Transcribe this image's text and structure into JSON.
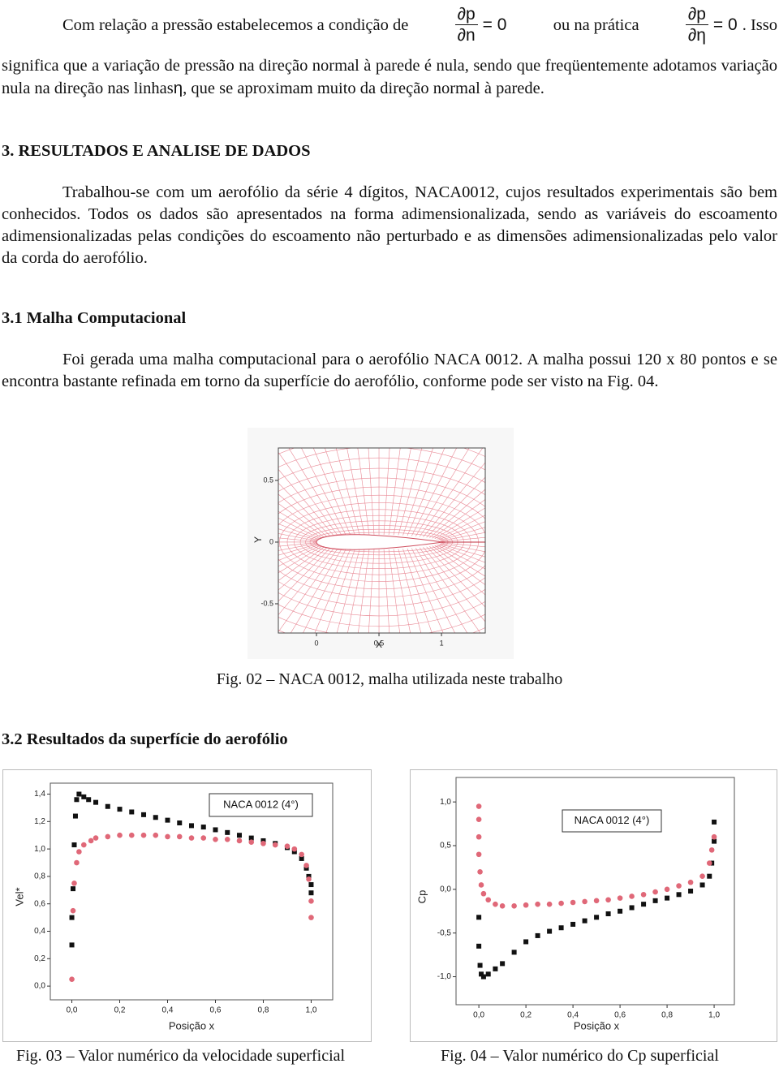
{
  "intro": {
    "lead": "Com relação a pressão estabelecemos a condição de",
    "eq1": {
      "num": "∂p",
      "den": "∂n",
      "rhs": "= 0"
    },
    "middle": "ou na prática",
    "eq2": {
      "num": "∂p",
      "den": "∂η",
      "rhs": "= 0"
    },
    "tail": ". Isso",
    "body": "significa que a variação de pressão na direção normal à parede é nula, sendo que freqüentemente adotamos variação nula na direção nas linhas",
    "eta": "η",
    "end": ", que se aproximam muito da direção normal à parede."
  },
  "section_3": {
    "heading": "3. RESULTADOS E ANALISE DE DADOS",
    "paragraph": "Trabalhou-se com um aerofólio da série 4 dígitos, NACA0012, cujos resultados experimentais são bem conhecidos. Todos os dados são apresentados na forma adimensionalizada, sendo as variáveis do escoamento adimensionalizadas pelas condições do escoamento não perturbado e as dimensões adimensionalizadas pelo valor da corda do aerofólio."
  },
  "section_3_1": {
    "heading": "3.1 Malha Computacional",
    "paragraph": "Foi gerada uma malha computacional para o aerofólio NACA 0012. A malha possui 120 x 80 pontos e se encontra bastante refinada em torno da superfície do aerofólio, conforme pode ser visto na Fig. 04."
  },
  "section_3_2": {
    "heading": "3.2 Resultados da superfície do aerofólio"
  },
  "chart_data": [
    {
      "type": "mesh",
      "xlabel": "X",
      "ylabel": "Y",
      "xlim": [
        -0.305,
        1.35
      ],
      "ylim": [
        -0.737,
        0.763
      ],
      "xticks": [
        0,
        0.5,
        1
      ],
      "yticks": [
        -0.5,
        0,
        0.5
      ],
      "color": "#e98a96",
      "caption": "Fig. 02 – NACA 0012, malha utilizada neste trabalho"
    },
    {
      "type": "scatter",
      "xlabel": "Posição x",
      "ylabel": "Vel*",
      "annotation": "NACA 0012 (4°)",
      "xlim": [
        -0.09,
        1.09
      ],
      "ylim": [
        -0.1,
        1.48
      ],
      "xticks": [
        {
          "value": 0,
          "label": "0,0"
        },
        {
          "value": 0.2,
          "label": "0,2"
        },
        {
          "value": 0.4,
          "label": "0,4"
        },
        {
          "value": 0.6,
          "label": "0,6"
        },
        {
          "value": 0.8,
          "label": "0,8"
        },
        {
          "value": 1,
          "label": "1,0"
        }
      ],
      "yticks": [
        {
          "value": 0,
          "label": "0,0"
        },
        {
          "value": 0.2,
          "label": "0,2"
        },
        {
          "value": 0.4,
          "label": "0,4"
        },
        {
          "value": 0.6,
          "label": "0,6"
        },
        {
          "value": 0.8,
          "label": "0,8"
        },
        {
          "value": 1,
          "label": "1,0"
        },
        {
          "value": 1.2,
          "label": "1,2"
        },
        {
          "value": 1.4,
          "label": "1,4"
        }
      ],
      "series": [
        {
          "color": "#111111",
          "marker": "square",
          "x": [
            0,
            0,
            0.005,
            0.01,
            0.015,
            0.02,
            0.03,
            0.05,
            0.07,
            0.1,
            0.15,
            0.2,
            0.25,
            0.3,
            0.35,
            0.4,
            0.45,
            0.5,
            0.55,
            0.6,
            0.65,
            0.7,
            0.75,
            0.8,
            0.85,
            0.9,
            0.93,
            0.96,
            0.98,
            0.99,
            1,
            1
          ],
          "values": [
            0.3,
            0.5,
            0.71,
            1.03,
            1.24,
            1.36,
            1.4,
            1.38,
            1.36,
            1.34,
            1.31,
            1.29,
            1.27,
            1.25,
            1.23,
            1.21,
            1.19,
            1.17,
            1.16,
            1.14,
            1.12,
            1.1,
            1.08,
            1.06,
            1.04,
            1.01,
            0.98,
            0.93,
            0.86,
            0.8,
            0.74,
            0.68
          ]
        },
        {
          "color": "#e06878",
          "marker": "circle",
          "x": [
            0,
            0.005,
            0.01,
            0.02,
            0.03,
            0.05,
            0.08,
            0.1,
            0.15,
            0.2,
            0.25,
            0.3,
            0.35,
            0.4,
            0.45,
            0.5,
            0.55,
            0.6,
            0.65,
            0.7,
            0.75,
            0.8,
            0.85,
            0.9,
            0.93,
            0.96,
            0.98,
            0.99,
            1,
            1
          ],
          "values": [
            0.05,
            0.55,
            0.75,
            0.9,
            0.98,
            1.03,
            1.06,
            1.08,
            1.09,
            1.1,
            1.1,
            1.1,
            1.1,
            1.09,
            1.09,
            1.08,
            1.08,
            1.07,
            1.07,
            1.06,
            1.05,
            1.04,
            1.03,
            1.02,
            1,
            0.96,
            0.88,
            0.78,
            0.62,
            0.5
          ]
        }
      ],
      "caption": "Fig. 03 – Valor numérico da velocidade superficial"
    },
    {
      "type": "scatter",
      "xlabel": "Posição x",
      "ylabel": "Cp",
      "annotation": "NACA 0012 (4°)",
      "xlim": [
        -0.097,
        1.086
      ],
      "ylim": [
        -1.32,
        1.28
      ],
      "xticks": [
        {
          "value": 0,
          "label": "0,0"
        },
        {
          "value": 0.2,
          "label": "0,2"
        },
        {
          "value": 0.4,
          "label": "0,4"
        },
        {
          "value": 0.6,
          "label": "0,6"
        },
        {
          "value": 0.8,
          "label": "0,8"
        },
        {
          "value": 1,
          "label": "1,0"
        }
      ],
      "yticks": [
        {
          "value": -1,
          "label": "-1,0"
        },
        {
          "value": -0.5,
          "label": "-0,5"
        },
        {
          "value": 0,
          "label": "0,0"
        },
        {
          "value": 0.5,
          "label": "0,5"
        },
        {
          "value": 1,
          "label": "1,0"
        }
      ],
      "series": [
        {
          "color": "#111111",
          "marker": "square",
          "x": [
            0,
            0,
            0.005,
            0.01,
            0.02,
            0.04,
            0.07,
            0.1,
            0.15,
            0.2,
            0.25,
            0.3,
            0.35,
            0.4,
            0.45,
            0.5,
            0.55,
            0.6,
            0.65,
            0.7,
            0.75,
            0.8,
            0.85,
            0.9,
            0.95,
            0.98,
            0.99,
            1,
            1
          ],
          "values": [
            -0.32,
            -0.65,
            -0.87,
            -0.97,
            -1.0,
            -0.97,
            -0.91,
            -0.85,
            -0.72,
            -0.6,
            -0.53,
            -0.48,
            -0.44,
            -0.4,
            -0.36,
            -0.32,
            -0.28,
            -0.25,
            -0.21,
            -0.17,
            -0.13,
            -0.1,
            -0.06,
            -0.02,
            0.05,
            0.15,
            0.3,
            0.55,
            0.77
          ]
        },
        {
          "color": "#e06878",
          "marker": "circle",
          "x": [
            0,
            0,
            0,
            0,
            0.005,
            0.01,
            0.02,
            0.04,
            0.07,
            0.1,
            0.15,
            0.2,
            0.25,
            0.3,
            0.35,
            0.4,
            0.45,
            0.5,
            0.55,
            0.6,
            0.65,
            0.7,
            0.75,
            0.8,
            0.85,
            0.9,
            0.95,
            0.98,
            0.99,
            1
          ],
          "values": [
            0.95,
            0.8,
            0.6,
            0.4,
            0.2,
            0.05,
            -0.05,
            -0.12,
            -0.17,
            -0.19,
            -0.19,
            -0.18,
            -0.17,
            -0.17,
            -0.16,
            -0.15,
            -0.14,
            -0.13,
            -0.12,
            -0.1,
            -0.08,
            -0.06,
            -0.03,
            0,
            0.04,
            0.08,
            0.15,
            0.3,
            0.45,
            0.6
          ]
        }
      ],
      "caption": "Fig. 04 – Valor numérico do Cp superficial"
    }
  ]
}
